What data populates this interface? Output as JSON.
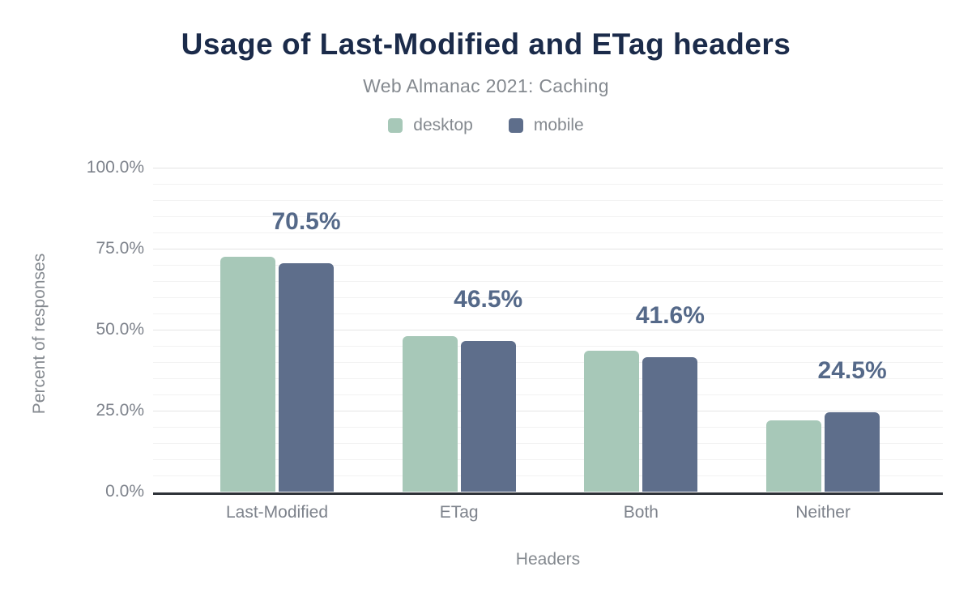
{
  "title": "Usage of Last-Modified and ETag headers",
  "subtitle": "Web Almanac 2021: Caching",
  "legend": [
    {
      "label": "desktop",
      "color": "#a7c8b8"
    },
    {
      "label": "mobile",
      "color": "#5e6e8b"
    }
  ],
  "chart_data": {
    "type": "bar",
    "title": "Usage of Last-Modified and ETag headers",
    "subtitle": "Web Almanac 2021: Caching",
    "categories": [
      "Last-Modified",
      "ETag",
      "Both",
      "Neither"
    ],
    "series": [
      {
        "name": "desktop",
        "color": "#a7c8b8",
        "values": [
          72.5,
          48.1,
          43.4,
          21.9
        ]
      },
      {
        "name": "mobile",
        "color": "#5e6e8b",
        "values": [
          70.5,
          46.5,
          41.6,
          24.5
        ]
      }
    ],
    "bar_labels": {
      "series": "mobile",
      "values": [
        "70.5%",
        "46.5%",
        "41.6%",
        "24.5%"
      ]
    },
    "xlabel": "Headers",
    "ylabel": "Percent of responses",
    "ylim": [
      0,
      100
    ],
    "yticks": [
      {
        "label": "0.0%",
        "value": 0
      },
      {
        "label": "25.0%",
        "value": 25
      },
      {
        "label": "50.0%",
        "value": 50
      },
      {
        "label": "75.0%",
        "value": 75
      },
      {
        "label": "100.0%",
        "value": 100
      }
    ],
    "grid": {
      "minor_step": 5,
      "major_step": 25,
      "orientation": "horizontal"
    },
    "legend_position": "top",
    "colors": {
      "title": "#1b2b4a",
      "subtitle": "#84898f",
      "axis_text": "#7d828b",
      "value_label": "#556989",
      "axis_line": "#2e3238",
      "grid_minor": "#f2f2f2",
      "grid_major": "#e4e4e4",
      "background": "#ffffff"
    }
  }
}
